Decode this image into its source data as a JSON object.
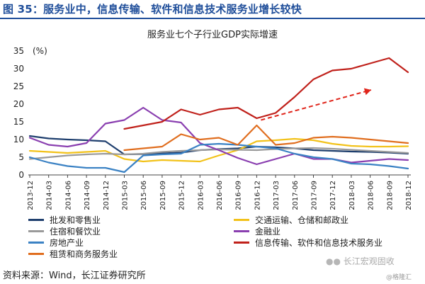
{
  "header": {
    "figure_title": "图 35：服务业中，信息传输、软件和信息技术服务业增长较快",
    "chart_title": "服务业七个子行业GDP实际增速"
  },
  "footer": {
    "source": "资料来源：Wind，长江证券研究所",
    "watermark": "长江宏观固收",
    "watermark_small": "@格隆汇"
  },
  "chart_data": {
    "type": "line",
    "title": "服务业七个子行业GDP实际增速",
    "unit_label": "(%)",
    "ylim": [
      0,
      35
    ],
    "yticks": [
      0,
      5,
      10,
      15,
      20,
      25,
      30,
      35
    ],
    "x": [
      "2013-12",
      "2014-03",
      "2014-06",
      "2014-09",
      "2014-12",
      "2015-03",
      "2015-06",
      "2015-09",
      "2015-12",
      "2016-03",
      "2016-06",
      "2016-09",
      "2016-12",
      "2017-03",
      "2017-06",
      "2017-09",
      "2017-12",
      "2018-03",
      "2018-06",
      "2018-09",
      "2018-12"
    ],
    "grid": false,
    "legend_position": "bottom",
    "series": [
      {
        "name": "批发和零售业",
        "color": "#1f3f6e",
        "values": [
          11,
          10.3,
          10,
          9.8,
          9.5,
          5.8,
          5.9,
          6.1,
          6.3,
          7,
          7.3,
          7.5,
          8,
          7.8,
          7.5,
          7,
          6.8,
          6.6,
          6.5,
          6.3,
          6.0
        ]
      },
      {
        "name": "交通运输、仓储和邮政业",
        "color": "#f2c21a",
        "values": [
          6.8,
          6.5,
          6.2,
          6.5,
          6.8,
          4.5,
          3.8,
          4.2,
          4.0,
          3.8,
          5.5,
          7.0,
          9.5,
          9.8,
          10.2,
          9.8,
          8.8,
          8.2,
          8.0,
          8.0,
          8.1
        ]
      },
      {
        "name": "住宿和餐饮业",
        "color": "#9a9a9a",
        "values": [
          4.5,
          5.0,
          5.5,
          5.8,
          6.0,
          5.8,
          6.0,
          6.5,
          6.8,
          7.0,
          7.2,
          7.1,
          7.0,
          7.3,
          7.5,
          7.6,
          7.4,
          7.1,
          6.8,
          6.5,
          6.2
        ]
      },
      {
        "name": "金融业",
        "color": "#8a3fb0",
        "values": [
          10.5,
          8.5,
          8.0,
          9.0,
          14.5,
          15.5,
          19.0,
          15.5,
          14.8,
          9.0,
          7.0,
          4.8,
          3.0,
          4.5,
          6.0,
          4.5,
          4.5,
          3.5,
          4.0,
          4.5,
          4.2
        ]
      },
      {
        "name": "信息传输、软件和信息技术服务业",
        "color": "#c0211b",
        "values": [
          null,
          null,
          null,
          null,
          null,
          13.0,
          14.0,
          15.0,
          18.5,
          17.0,
          18.5,
          19.0,
          16.0,
          17.5,
          22.0,
          27.0,
          29.5,
          30.0,
          31.5,
          33.0,
          29.0
        ]
      },
      {
        "name": "房地产业",
        "color": "#3b82c4",
        "values": [
          5.0,
          3.5,
          2.5,
          2.0,
          2.0,
          0.8,
          5.5,
          5.8,
          6.0,
          8.5,
          8.8,
          8.5,
          8.0,
          7.5,
          6.0,
          5.0,
          4.5,
          3.2,
          3.0,
          2.5,
          1.8
        ]
      },
      {
        "name": "租赁和商务服务业",
        "color": "#e06e1f",
        "values": [
          null,
          null,
          null,
          null,
          null,
          7.0,
          7.5,
          8.0,
          11.5,
          10.0,
          10.5,
          8.5,
          14.0,
          8.5,
          9.0,
          10.5,
          10.8,
          10.5,
          10.0,
          9.5,
          9.0
        ]
      }
    ]
  },
  "legend_rows": [
    [
      {
        "label": "批发和零售业",
        "color": "#1f3f6e"
      },
      {
        "label": "交通运输、仓储和邮政业",
        "color": "#f2c21a"
      }
    ],
    [
      {
        "label": "住宿和餐饮业",
        "color": "#9a9a9a"
      },
      {
        "label": "金融业",
        "color": "#8a3fb0"
      }
    ],
    [
      {
        "label": "房地产业",
        "color": "#3b82c4"
      },
      {
        "label": "信息传输、软件和信息技术服务业",
        "color": "#c0211b"
      }
    ],
    [
      {
        "label": "租赁和商务服务业",
        "color": "#e06e1f"
      }
    ]
  ]
}
